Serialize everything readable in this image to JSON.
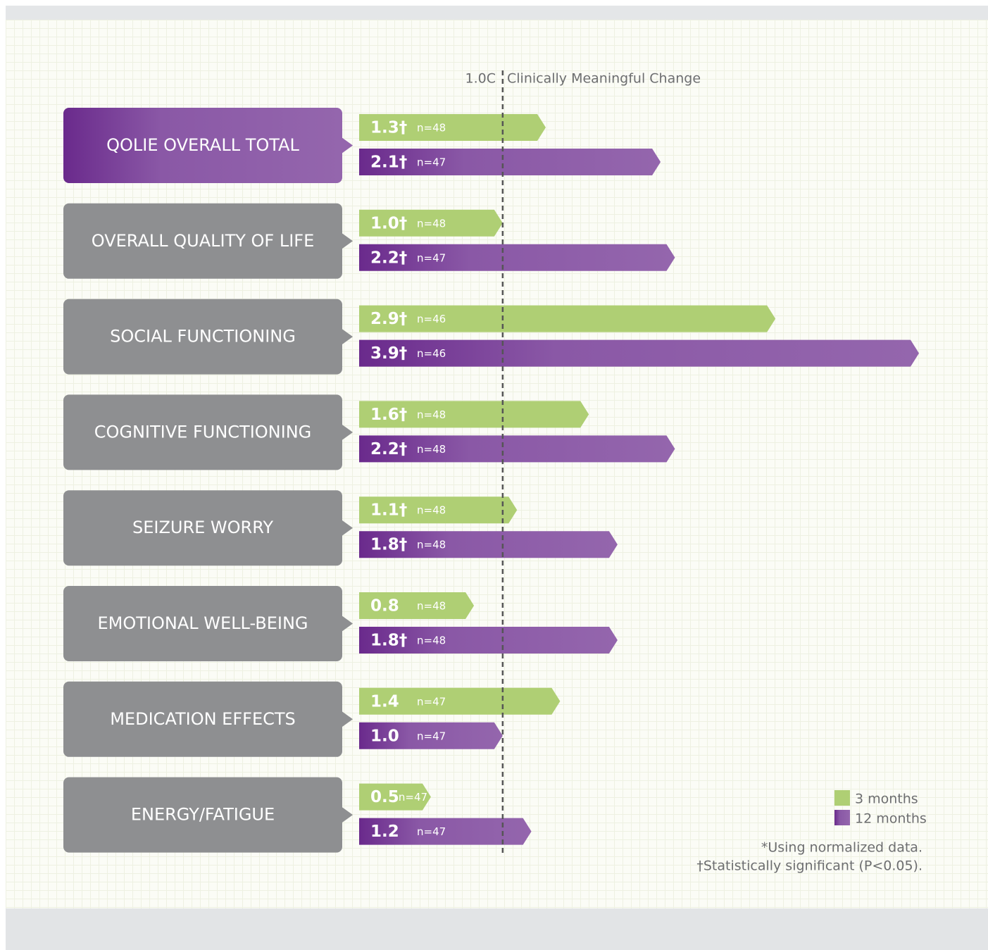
{
  "chart_data": {
    "type": "bar",
    "orientation": "horizontal",
    "categories": [
      "QOLIE OVERALL TOTAL",
      "OVERALL QUALITY OF LIFE",
      "SOCIAL FUNCTIONING",
      "COGNITIVE FUNCTIONING",
      "SEIZURE WORRY",
      "EMOTIONAL WELL-BEING",
      "MEDICATION EFFECTS",
      "ENERGY/FATIGUE"
    ],
    "highlight": 0,
    "series": [
      {
        "name": "3 months",
        "color": "#afcf74",
        "values": [
          1.3,
          1.0,
          2.9,
          1.6,
          1.1,
          0.8,
          1.4,
          0.5
        ],
        "value_labels": [
          "1.3†",
          "1.0†",
          "2.9†",
          "1.6†",
          "1.1†",
          "0.8",
          "1.4",
          "0.5"
        ],
        "n_labels": [
          "n=48",
          "n=48",
          "n=46",
          "n=48",
          "n=48",
          "n=48",
          "n=47",
          "n=47"
        ]
      },
      {
        "name": "12 months",
        "color": "#8c5ba8",
        "values": [
          2.1,
          2.2,
          3.9,
          2.2,
          1.8,
          1.8,
          1.0,
          1.2
        ],
        "value_labels": [
          "2.1†",
          "2.2†",
          "3.9†",
          "2.2†",
          "1.8†",
          "1.8†",
          "1.0",
          "1.2"
        ],
        "n_labels": [
          "n=47",
          "n=47",
          "n=46",
          "n=48",
          "n=48",
          "n=48",
          "n=47",
          "n=47"
        ]
      }
    ],
    "reference": {
      "value": 1.0,
      "label": "1.0C",
      "title": "Clinically Meaningful Change"
    },
    "footnotes": [
      "*Using normalized data.",
      "†Statistically significant (P<0.05)."
    ]
  }
}
